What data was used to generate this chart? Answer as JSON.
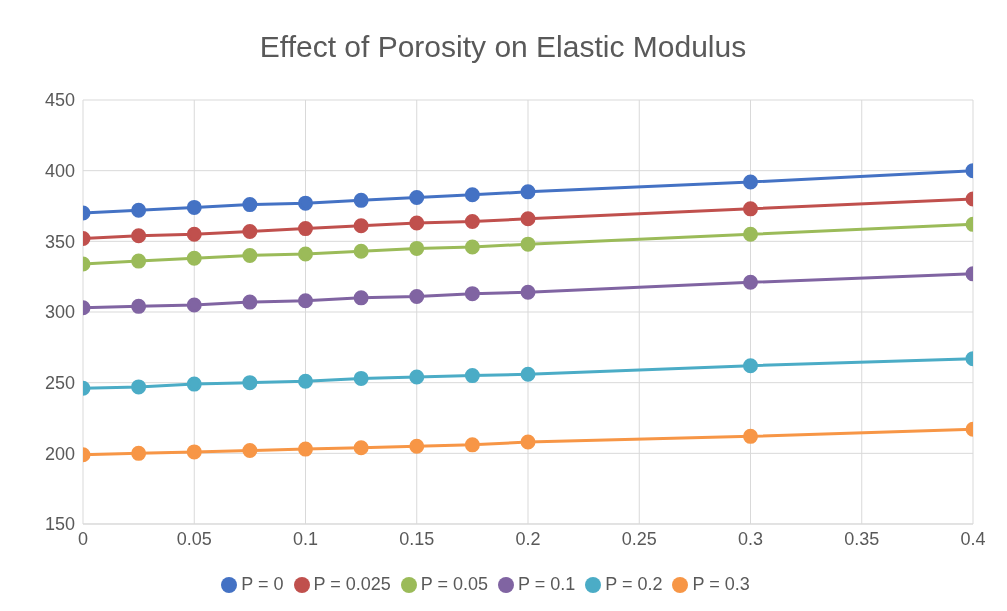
{
  "chart_data": {
    "type": "line",
    "title": "Effect of Porosity on Elastic Modulus",
    "x": [
      0,
      0.025,
      0.05,
      0.075,
      0.1,
      0.125,
      0.15,
      0.175,
      0.2,
      0.3,
      0.4
    ],
    "series": [
      {
        "name": "P = 0",
        "color": "#4472c4",
        "values": [
          370,
          372,
          374,
          376,
          377,
          379,
          381,
          383,
          385,
          392,
          400
        ]
      },
      {
        "name": "P = 0.025",
        "color": "#c0504d",
        "values": [
          352,
          354,
          355,
          357,
          359,
          361,
          363,
          364,
          366,
          373,
          380
        ]
      },
      {
        "name": "P = 0.05",
        "color": "#9bbb59",
        "values": [
          334,
          336,
          338,
          340,
          341,
          343,
          345,
          346,
          348,
          355,
          362
        ]
      },
      {
        "name": "P = 0.1",
        "color": "#8064a2",
        "values": [
          303,
          304,
          305,
          307,
          308,
          310,
          311,
          313,
          314,
          321,
          327
        ]
      },
      {
        "name": "P = 0.2",
        "color": "#4bacc6",
        "values": [
          246,
          247,
          249,
          250,
          251,
          253,
          254,
          255,
          256,
          262,
          267
        ]
      },
      {
        "name": "P = 0.3",
        "color": "#f79646",
        "values": [
          199,
          200,
          201,
          202,
          203,
          204,
          205,
          206,
          208,
          212,
          217
        ]
      }
    ],
    "xlim": [
      0,
      0.4
    ],
    "xticks": [
      0,
      0.05,
      0.1,
      0.15,
      0.2,
      0.25,
      0.3,
      0.35,
      0.4
    ],
    "ylim": [
      150,
      450
    ],
    "yticks": [
      150,
      200,
      250,
      300,
      350,
      400,
      450
    ],
    "grid": true,
    "legend": "bottom",
    "marker": "circle",
    "line_style": "solid"
  }
}
